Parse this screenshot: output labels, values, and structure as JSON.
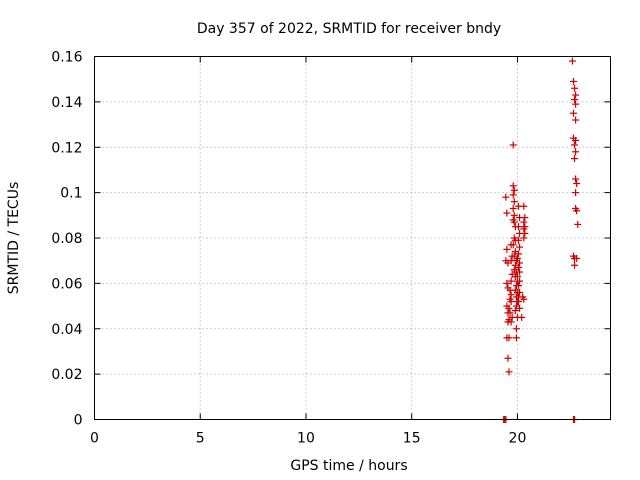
{
  "chart_data": {
    "type": "scatter",
    "title": "Day 357 of 2022, SRMTID for receiver bndy",
    "xlabel": "GPS time / hours",
    "ylabel": "SRMTID / TECUs",
    "xlim": [
      0,
      24.4
    ],
    "ylim": [
      0,
      0.16
    ],
    "xticks": [
      0,
      5,
      10,
      15,
      20
    ],
    "xtick_labels": [
      "0",
      "5",
      "10",
      "15",
      "20"
    ],
    "yticks": [
      0,
      0.02,
      0.04,
      0.06,
      0.08,
      0.1,
      0.12,
      0.14,
      0.16
    ],
    "ytick_labels": [
      "0",
      "0.02",
      "0.04",
      "0.06",
      "0.08",
      "0.1",
      "0.12",
      "0.14",
      "0.16"
    ],
    "grid": true,
    "marker": "+",
    "color": "#cc0000",
    "series": [
      {
        "name": "SRMTID",
        "points": [
          [
            19.35,
            0.0
          ],
          [
            19.4,
            0.0
          ],
          [
            19.45,
            0.0
          ],
          [
            22.65,
            0.0
          ],
          [
            22.7,
            0.0
          ],
          [
            19.45,
            0.098
          ],
          [
            19.5,
            0.091
          ],
          [
            19.5,
            0.075
          ],
          [
            19.45,
            0.07
          ],
          [
            19.55,
            0.069
          ],
          [
            19.5,
            0.06
          ],
          [
            19.55,
            0.058
          ],
          [
            19.5,
            0.05
          ],
          [
            19.6,
            0.049
          ],
          [
            19.55,
            0.047
          ],
          [
            19.6,
            0.044
          ],
          [
            19.55,
            0.043
          ],
          [
            19.5,
            0.036
          ],
          [
            19.6,
            0.036
          ],
          [
            19.55,
            0.027
          ],
          [
            19.6,
            0.021
          ],
          [
            19.7,
            0.077
          ],
          [
            19.75,
            0.072
          ],
          [
            19.7,
            0.07
          ],
          [
            19.75,
            0.064
          ],
          [
            19.7,
            0.061
          ],
          [
            19.65,
            0.057
          ],
          [
            19.7,
            0.055
          ],
          [
            19.65,
            0.053
          ],
          [
            19.7,
            0.052
          ],
          [
            19.65,
            0.047
          ],
          [
            19.75,
            0.045
          ],
          [
            19.7,
            0.043
          ],
          [
            19.8,
            0.121
          ],
          [
            19.8,
            0.103
          ],
          [
            19.85,
            0.101
          ],
          [
            19.8,
            0.099
          ],
          [
            19.85,
            0.096
          ],
          [
            19.8,
            0.093
          ],
          [
            19.85,
            0.09
          ],
          [
            19.8,
            0.088
          ],
          [
            19.85,
            0.087
          ],
          [
            19.9,
            0.085
          ],
          [
            19.85,
            0.08
          ],
          [
            19.9,
            0.079
          ],
          [
            19.8,
            0.077
          ],
          [
            19.9,
            0.074
          ],
          [
            19.85,
            0.072
          ],
          [
            19.95,
            0.07
          ],
          [
            19.9,
            0.068
          ],
          [
            19.85,
            0.066
          ],
          [
            19.95,
            0.065
          ],
          [
            19.9,
            0.063
          ],
          [
            20.0,
            0.061
          ],
          [
            19.95,
            0.059
          ],
          [
            19.9,
            0.057
          ],
          [
            20.0,
            0.056
          ],
          [
            19.95,
            0.054
          ],
          [
            20.05,
            0.052
          ],
          [
            19.95,
            0.05
          ],
          [
            19.9,
            0.048
          ],
          [
            20.0,
            0.045
          ],
          [
            19.95,
            0.04
          ],
          [
            19.95,
            0.036
          ],
          [
            20.05,
            0.094
          ],
          [
            20.1,
            0.089
          ],
          [
            20.05,
            0.085
          ],
          [
            20.1,
            0.082
          ],
          [
            20.05,
            0.079
          ],
          [
            20.1,
            0.076
          ],
          [
            20.05,
            0.073
          ],
          [
            20.0,
            0.071
          ],
          [
            20.1,
            0.069
          ],
          [
            20.05,
            0.067
          ],
          [
            20.1,
            0.065
          ],
          [
            20.0,
            0.063
          ],
          [
            20.1,
            0.061
          ],
          [
            20.05,
            0.059
          ],
          [
            20.1,
            0.056
          ],
          [
            20.05,
            0.054
          ],
          [
            20.0,
            0.052
          ],
          [
            20.1,
            0.049
          ],
          [
            20.2,
            0.045
          ],
          [
            20.3,
            0.094
          ],
          [
            20.35,
            0.089
          ],
          [
            20.3,
            0.087
          ],
          [
            20.35,
            0.085
          ],
          [
            20.3,
            0.084
          ],
          [
            20.35,
            0.082
          ],
          [
            20.3,
            0.08
          ],
          [
            20.25,
            0.054
          ],
          [
            20.3,
            0.053
          ],
          [
            22.6,
            0.158
          ],
          [
            22.65,
            0.149
          ],
          [
            22.7,
            0.146
          ],
          [
            22.75,
            0.143
          ],
          [
            22.7,
            0.141
          ],
          [
            22.75,
            0.139
          ],
          [
            22.65,
            0.135
          ],
          [
            22.75,
            0.132
          ],
          [
            22.65,
            0.124
          ],
          [
            22.75,
            0.123
          ],
          [
            22.7,
            0.121
          ],
          [
            22.75,
            0.118
          ],
          [
            22.7,
            0.115
          ],
          [
            22.75,
            0.106
          ],
          [
            22.8,
            0.104
          ],
          [
            22.75,
            0.1
          ],
          [
            22.75,
            0.093
          ],
          [
            22.8,
            0.092
          ],
          [
            22.85,
            0.086
          ],
          [
            22.65,
            0.072
          ],
          [
            22.7,
            0.071
          ],
          [
            22.8,
            0.071
          ],
          [
            22.7,
            0.068
          ]
        ]
      }
    ]
  }
}
